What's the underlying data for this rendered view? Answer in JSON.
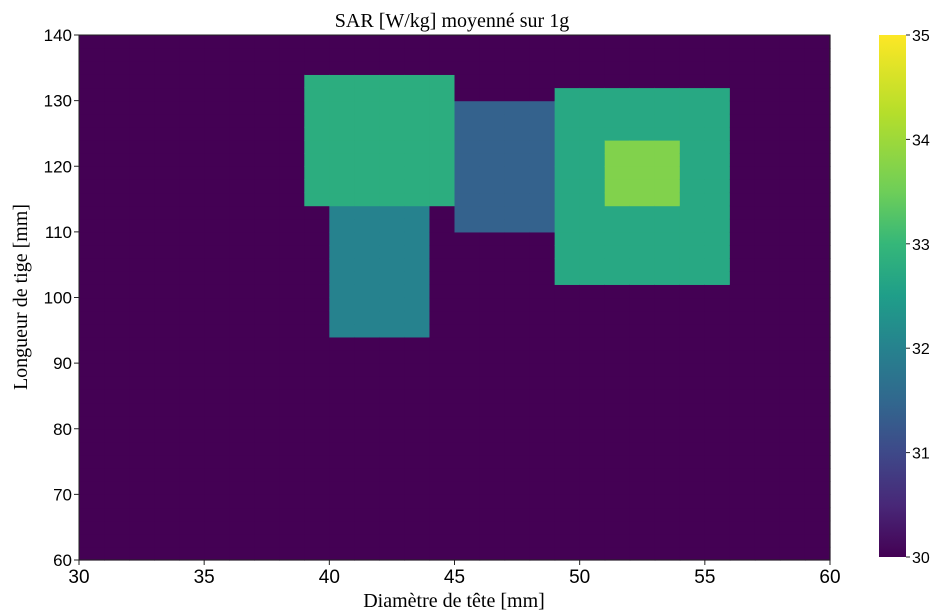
{
  "chart_data": {
    "type": "heatmap",
    "title": "SAR [W/kg] moyenné sur 1g",
    "xlabel": "Diamètre de tête [mm]",
    "ylabel": "Longueur de tige [mm]",
    "xlim": [
      30,
      60
    ],
    "ylim": [
      60,
      140
    ],
    "x_ticks": [
      30,
      35,
      40,
      45,
      50,
      55,
      60
    ],
    "y_ticks": [
      60,
      70,
      80,
      90,
      100,
      110,
      120,
      130,
      140
    ],
    "colorbar": {
      "min": 30,
      "max": 35,
      "ticks": [
        30,
        31,
        32,
        33,
        34,
        35
      ],
      "colormap": "viridis"
    },
    "grid_step": {
      "x": 1,
      "y": 2
    },
    "background_value": 30,
    "hotspots": [
      {
        "x_range": [
          39,
          45
        ],
        "y_range": [
          113,
          133
        ],
        "value": 32.8
      },
      {
        "x_range": [
          40,
          44
        ],
        "y_range": [
          93,
          113
        ],
        "value": 32.0
      },
      {
        "x_range": [
          49,
          56
        ],
        "y_range": [
          101,
          131
        ],
        "value": 32.7
      },
      {
        "x_range": [
          51,
          54
        ],
        "y_range": [
          114,
          124
        ],
        "value": 33.7
      },
      {
        "x_range": [
          45,
          49
        ],
        "y_range": [
          109,
          129
        ],
        "value": 31.4
      }
    ]
  }
}
